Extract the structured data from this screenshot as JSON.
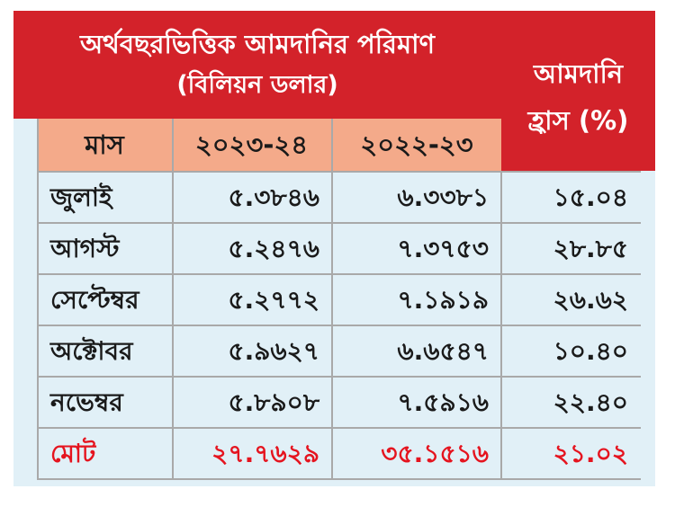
{
  "chart_data": {
    "type": "table",
    "title": "অর্থবছরভিত্তিক আমদানির পরিমাণ",
    "subtitle": "(বিলিয়ন ডলার)",
    "columns": [
      "মাস",
      "২০২৩-২৪",
      "২০২২-২৩"
    ],
    "drop_header": [
      "আমদানি",
      "হ্রাস (%)"
    ],
    "rows": [
      {
        "month": "জুলাই",
        "fy2324": "৫.৩৮৪৬",
        "fy2223": "৬.৩৩৮১",
        "drop": "১৫.০৪"
      },
      {
        "month": "আগস্ট",
        "fy2324": "৫.২৪৭৬",
        "fy2223": "৭.৩৭৫৩",
        "drop": "২৮.৮৫"
      },
      {
        "month": "সেপ্টেম্বর",
        "fy2324": "৫.২৭৭২",
        "fy2223": "৭.১৯১৯",
        "drop": "২৬.৬২"
      },
      {
        "month": "অক্টোবর",
        "fy2324": "৫.৯৬২৭",
        "fy2223": "৬.৬৫৪৭",
        "drop": "১০.৪০"
      },
      {
        "month": "নভেম্বর",
        "fy2324": "৫.৮৯০৮",
        "fy2223": "৭.৫৯১৬",
        "drop": "২২.৪০"
      }
    ],
    "total": {
      "month": "মোট",
      "fy2324": "২৭.৭৬২৯",
      "fy2223": "৩৫.১৫১৬",
      "drop": "২১.০২"
    }
  },
  "colors": {
    "header_red": "#d3222a",
    "subheader_salmon": "#f4aa8a",
    "body_blue": "#e1f0f7",
    "total_text": "#e5141f",
    "grid": "#a9a9a9"
  }
}
